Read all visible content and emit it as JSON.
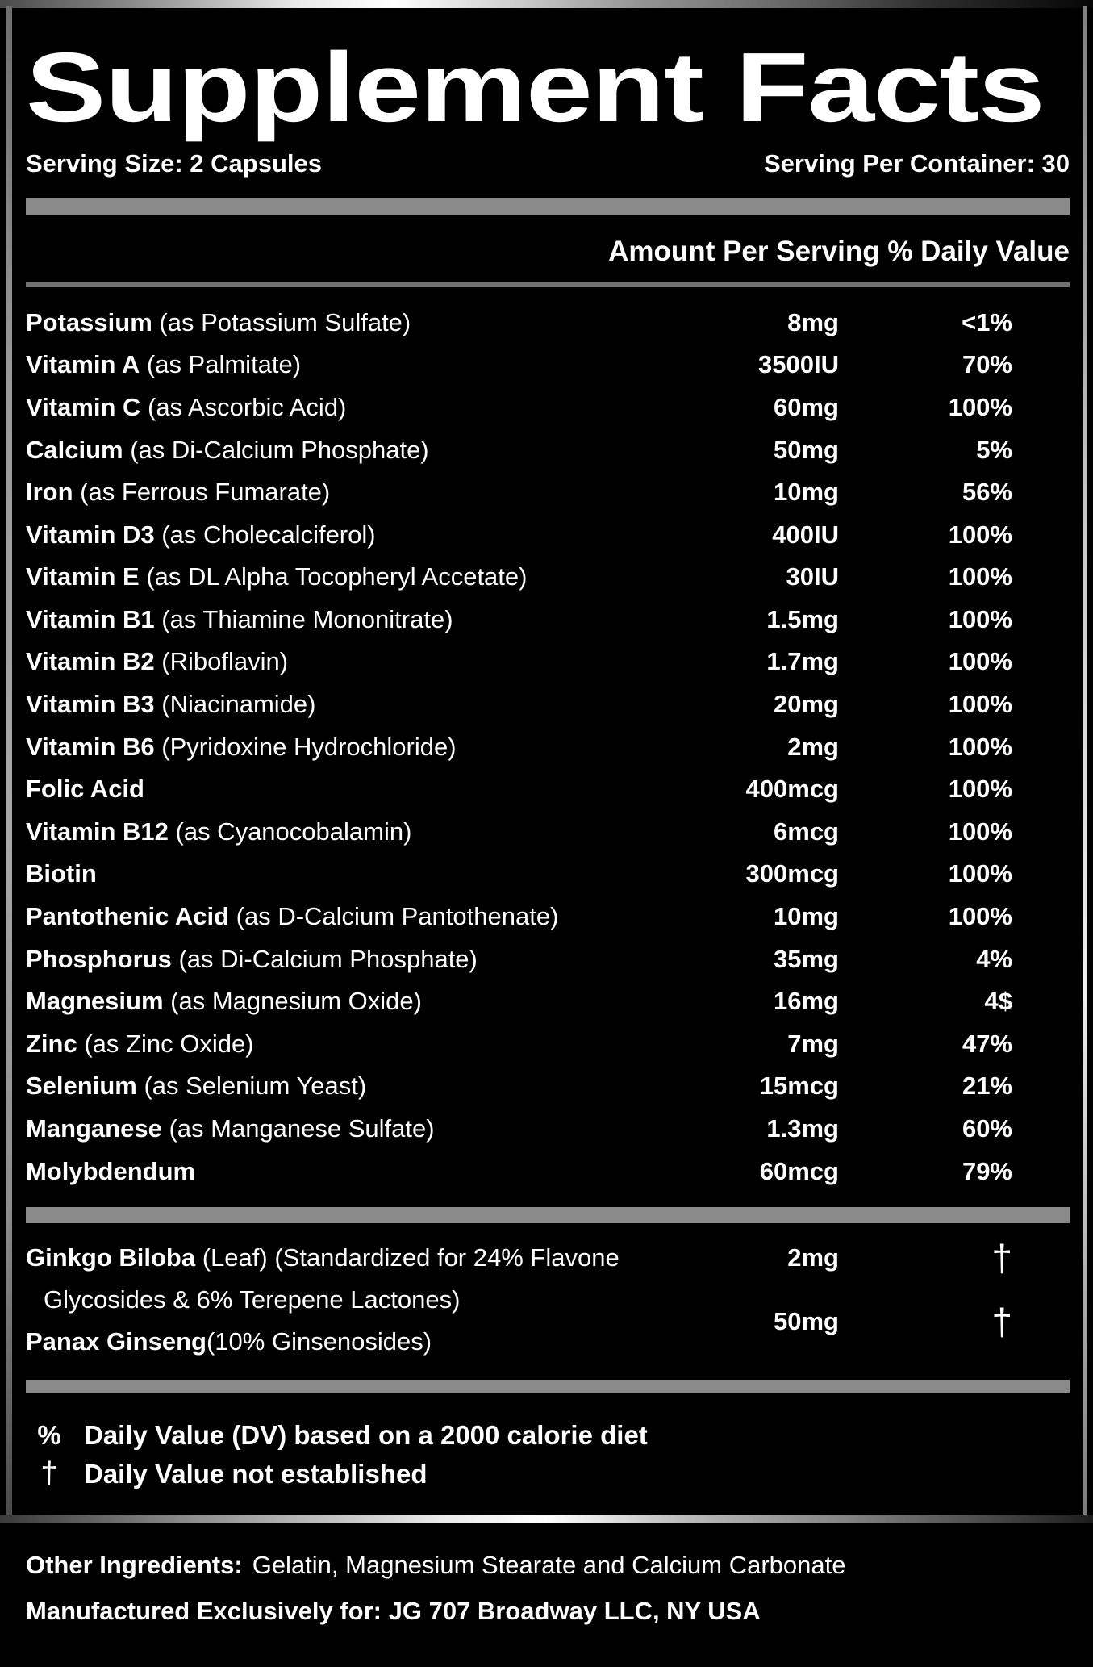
{
  "title": "Supplement Facts",
  "serving_size": "Serving Size: 2 Capsules",
  "serving_per_container": "Serving Per Container: 30",
  "column_header": "Amount Per Serving % Daily Value",
  "nutrients": [
    {
      "name": "Potassium",
      "desc": " (as Potassium Sulfate)",
      "amount": "8mg",
      "dv": "<1%"
    },
    {
      "name": "Vitamin A",
      "desc": " (as Palmitate)",
      "amount": "3500IU",
      "dv": "70%"
    },
    {
      "name": "Vitamin C",
      "desc": " (as Ascorbic Acid)",
      "amount": "60mg",
      "dv": "100%"
    },
    {
      "name": "Calcium",
      "desc": " (as Di-Calcium Phosphate)",
      "amount": "50mg",
      "dv": "5%"
    },
    {
      "name": "Iron",
      "desc": " (as Ferrous Fumarate)",
      "amount": "10mg",
      "dv": "56%"
    },
    {
      "name": "Vitamin D3",
      "desc": " (as Cholecalciferol)",
      "amount": "400IU",
      "dv": "100%"
    },
    {
      "name": "Vitamin E",
      "desc": " (as DL Alpha Tocopheryl Accetate)",
      "amount": "30IU",
      "dv": "100%"
    },
    {
      "name": "Vitamin B1",
      "desc": " (as Thiamine Mononitrate)",
      "amount": "1.5mg",
      "dv": "100%"
    },
    {
      "name": "Vitamin B2",
      "desc": " (Riboflavin)",
      "amount": "1.7mg",
      "dv": "100%"
    },
    {
      "name": "Vitamin B3",
      "desc": " (Niacinamide)",
      "amount": "20mg",
      "dv": "100%"
    },
    {
      "name": "Vitamin B6",
      "desc": " (Pyridoxine Hydrochloride)",
      "amount": "2mg",
      "dv": "100%"
    },
    {
      "name": "Folic Acid",
      "desc": "",
      "amount": "400mcg",
      "dv": "100%"
    },
    {
      "name": "Vitamin B12",
      "desc": " (as Cyanocobalamin)",
      "amount": "6mcg",
      "dv": "100%"
    },
    {
      "name": "Biotin",
      "desc": "",
      "amount": "300mcg",
      "dv": "100%"
    },
    {
      "name": "Pantothenic Acid",
      "desc": " (as D-Calcium Pantothenate)",
      "amount": "10mg",
      "dv": "100%"
    },
    {
      "name": "Phosphorus",
      "desc": " (as Di-Calcium Phosphate)",
      "amount": "35mg",
      "dv": "4%"
    },
    {
      "name": "Magnesium",
      "desc": " (as Magnesium Oxide)",
      "amount": "16mg",
      "dv": "4$"
    },
    {
      "name": "Zinc",
      "desc": " (as Zinc Oxide)",
      "amount": "7mg",
      "dv": "47%"
    },
    {
      "name": "Selenium",
      "desc": " (as Selenium Yeast)",
      "amount": "15mcg",
      "dv": "21%"
    },
    {
      "name": "Manganese",
      "desc": " (as Manganese Sulfate)",
      "amount": "1.3mg",
      "dv": "60%"
    },
    {
      "name": "Molybdendum",
      "desc": "",
      "amount": "60mcg",
      "dv": "79%"
    }
  ],
  "botanicals": [
    {
      "name": "Ginkgo Biloba",
      "desc": " (Leaf) (Standardized for 24% Flavone",
      "desc2": "Glycosides & 6% Terepene Lactones)",
      "amount": "2mg",
      "dv": "†"
    },
    {
      "name": "Panax Ginseng",
      "desc": " (10% Ginsenosides)",
      "amount": "50mg",
      "dv": "†"
    }
  ],
  "footnotes": [
    {
      "symbol": "%",
      "text": "Daily Value (DV) based on a 2000 calorie diet"
    },
    {
      "symbol": "†",
      "text": "Daily Value not established"
    }
  ],
  "other_ingredients_label": "Other Ingredients:",
  "other_ingredients_value": "Gelatin, Magnesium Stearate and Calcium Carbonate",
  "manufactured": "Manufactured Exclusively for: JG 707 Broadway LLC, NY USA",
  "colors": {
    "background": "#000000",
    "text": "#ffffff",
    "divider_thick": "#8a8a8a",
    "divider_thin": "#707070",
    "frame_silver": "#c0c0c0"
  }
}
